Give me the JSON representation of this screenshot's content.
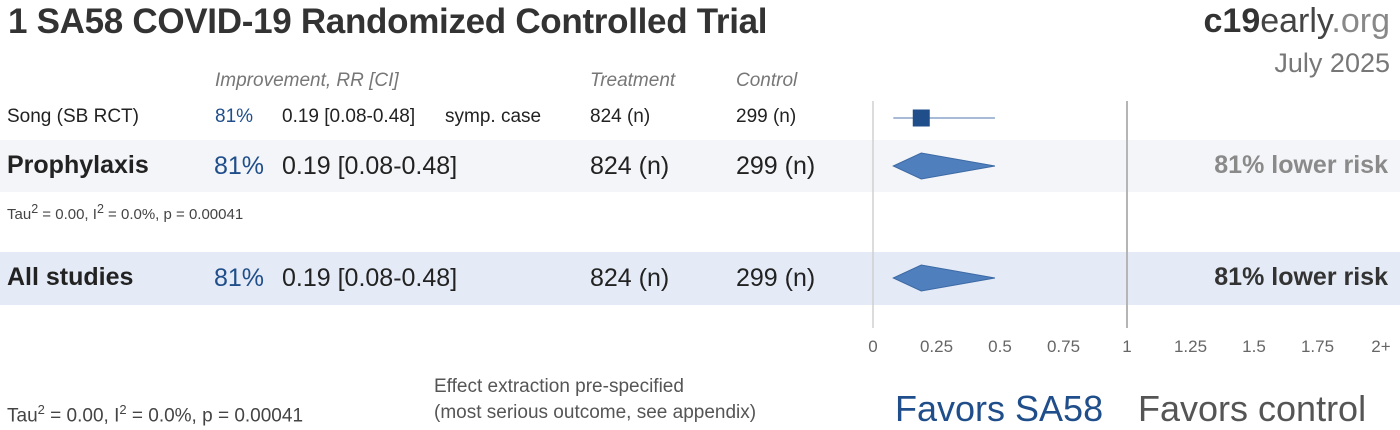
{
  "header": {
    "title": "1 SA58 COVID-19 Randomized Controlled Trial",
    "brand_bold": "c19",
    "brand_mid": "early",
    "brand_tail": ".org",
    "date": "July 2025"
  },
  "columns": {
    "improvement": "Improvement, RR [CI]",
    "treatment": "Treatment",
    "control": "Control"
  },
  "study": {
    "name": "Song (SB RCT)",
    "improvement": "81%",
    "rr_ci": "0.19 [0.08-0.48]",
    "outcome": "symp. case",
    "treatment_n": "824 (n)",
    "control_n": "299 (n)"
  },
  "prophylaxis": {
    "label": "Prophylaxis",
    "improvement": "81%",
    "rr_ci": "0.19 [0.08-0.48]",
    "treatment_n": "824 (n)",
    "control_n": "299 (n)",
    "risk_text": "81% lower risk",
    "heterogeneity": {
      "tau_prefix": "Tau",
      "tau_sup": "2",
      "i_part": " = 0.00, I",
      "i_sup": "2",
      "rest": " = 0.0%, p = 0.00041"
    }
  },
  "all_studies": {
    "label": "All studies",
    "improvement": "81%",
    "rr_ci": "0.19 [0.08-0.48]",
    "treatment_n": "824 (n)",
    "control_n": "299 (n)",
    "risk_text": "81% lower risk"
  },
  "footer": {
    "heterogeneity": {
      "tau_prefix": "Tau",
      "tau_sup": "2",
      "i_part": " = 0.00, I",
      "i_sup": "2",
      "rest": " = 0.0%, p = 0.00041"
    },
    "note_line1": "Effect extraction pre-specified",
    "note_line2": "(most serious outcome, see appendix)",
    "favors_left": "Favors SA58",
    "favors_right": "Favors control"
  },
  "colors": {
    "accent": "#1f4e8a",
    "diamond": "#4f7fbd",
    "square": "#1f4e8a",
    "gray_band": "#f4f5f8",
    "blue_band": "#e5ebf6"
  },
  "chart_data": {
    "type": "forest",
    "axis": {
      "min": 0,
      "max": 2,
      "null_value": 1,
      "ticks": [
        0,
        0.25,
        0.5,
        0.75,
        1,
        1.25,
        1.5,
        1.75,
        2
      ],
      "tick_labels": [
        "0",
        "0.25",
        "0.5",
        "0.75",
        "1",
        "1.25",
        "1.5",
        "1.75",
        "2+"
      ]
    },
    "studies": [
      {
        "name": "Song (SB RCT)",
        "rr": 0.19,
        "ci_low": 0.08,
        "ci_high": 0.48
      }
    ],
    "subgroups": [
      {
        "name": "Prophylaxis",
        "rr": 0.19,
        "ci_low": 0.08,
        "ci_high": 0.48
      }
    ],
    "overall": {
      "name": "All studies",
      "rr": 0.19,
      "ci_low": 0.08,
      "ci_high": 0.48
    }
  }
}
